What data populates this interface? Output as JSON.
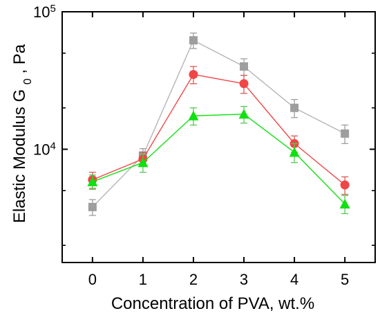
{
  "chart_data": {
    "type": "line",
    "title": "",
    "xlabel": "Concentration of PVA, wt.%",
    "ylabel": {
      "main": "Elastic Modulus G",
      "subscript": "0",
      "suffix": ", Pa"
    },
    "x": [
      0,
      1,
      2,
      3,
      4,
      5
    ],
    "xlim": [
      -0.6,
      5.6
    ],
    "ylim": [
      1500,
      100000
    ],
    "yscale": "log",
    "grid": false,
    "legend": "none",
    "x_tick_labels": [
      "0",
      "1",
      "2",
      "3",
      "4",
      "5"
    ],
    "y_tick_labels": [
      {
        "base": "10",
        "exponent": "4",
        "value": 10000
      },
      {
        "base": "10",
        "exponent": "5",
        "value": 100000
      }
    ],
    "y_minor_ticks": [
      2000,
      5000,
      20000,
      50000
    ],
    "series": [
      {
        "marker": "square",
        "color": "#9e9e9e",
        "line_color": "#b5b5b5",
        "error_color": "#9e9e9e",
        "values": [
          3800,
          9000,
          62000,
          40000,
          20000,
          13000
        ],
        "errors": [
          500,
          1100,
          8000,
          5500,
          3000,
          2000
        ]
      },
      {
        "marker": "circle",
        "color": "#f04646",
        "line_color": "#f04646",
        "error_color": "#d85a5a",
        "values": [
          6000,
          8500,
          35000,
          30000,
          11000,
          5500
        ],
        "errors": [
          800,
          1000,
          5000,
          4500,
          1500,
          800
        ]
      },
      {
        "marker": "triangle",
        "color": "#11e011",
        "line_color": "#11e011",
        "error_color": "#55c955",
        "values": [
          5800,
          8000,
          17500,
          18000,
          9500,
          4000
        ],
        "errors": [
          700,
          1200,
          2500,
          2500,
          1500,
          600
        ]
      }
    ]
  }
}
